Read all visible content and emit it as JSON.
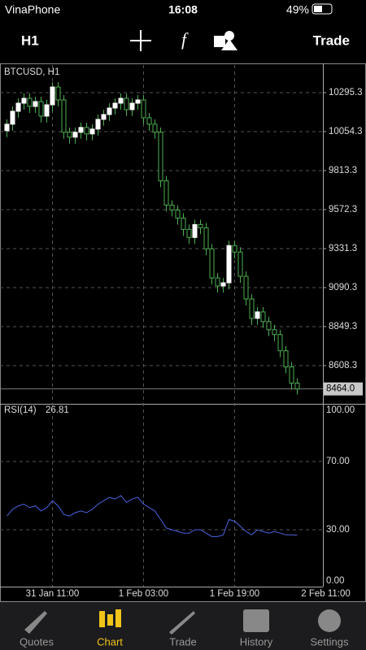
{
  "status_bar": {
    "carrier": "VinaPhone",
    "time": "16:08",
    "battery": "49%"
  },
  "toolbar": {
    "timeframe": "H1",
    "action": "Trade"
  },
  "chart_data": {
    "type": "candlestick",
    "title": "BTCUSD, H1",
    "categories": [
      null,
      null,
      null,
      null,
      null,
      null,
      null,
      null,
      "31 Jan 11:00",
      null,
      null,
      null,
      null,
      null,
      null,
      null,
      null,
      null,
      null,
      null,
      null,
      null,
      null,
      null,
      "1 Feb 03:00",
      null,
      null,
      null,
      null,
      null,
      null,
      null,
      null,
      null,
      null,
      null,
      null,
      null,
      null,
      null,
      "1 Feb 19:00",
      null,
      null,
      null,
      null,
      null,
      null,
      null,
      null,
      null,
      null,
      null,
      null,
      null,
      null,
      null,
      "2 Feb 11:00"
    ],
    "open": [
      10060,
      10100,
      10180,
      10230,
      10260,
      10210,
      10240,
      10150,
      10220,
      10330,
      10250,
      10050,
      10020,
      10050,
      10080,
      10040,
      10070,
      10130,
      10160,
      10200,
      10230,
      10260,
      10190,
      10230,
      10250,
      10140,
      10100,
      10050,
      9750,
      9600,
      9570,
      9520,
      9450,
      9400,
      9480,
      9460,
      9330,
      9150,
      9100,
      9120,
      9350,
      9310,
      9160,
      9020,
      8900,
      8940,
      8880,
      8830,
      8800,
      8700,
      8600,
      8500,
      null,
      null,
      null,
      null,
      null
    ],
    "high": [
      10130,
      10210,
      10260,
      10290,
      10290,
      10270,
      10270,
      10250,
      10360,
      10360,
      10280,
      10080,
      10080,
      10110,
      10110,
      10100,
      10160,
      10190,
      10230,
      10260,
      10290,
      10290,
      10260,
      10280,
      10280,
      10170,
      10130,
      10080,
      9780,
      9630,
      9600,
      9550,
      9480,
      9510,
      9510,
      9490,
      9360,
      9180,
      9150,
      9380,
      9380,
      9340,
      9190,
      9050,
      8970,
      8970,
      8910,
      8860,
      8830,
      8730,
      8630,
      8530,
      null,
      null,
      null,
      null,
      null
    ],
    "low": [
      10020,
      10060,
      10140,
      10190,
      10170,
      10170,
      10110,
      10110,
      10180,
      10210,
      10010,
      9980,
      9980,
      10010,
      10000,
      10000,
      10030,
      10090,
      10120,
      10160,
      10190,
      10150,
      10150,
      10190,
      10100,
      10060,
      10010,
      9710,
      9560,
      9530,
      9480,
      9410,
      9360,
      9360,
      9420,
      9290,
      9110,
      9060,
      9060,
      9080,
      9270,
      9120,
      8980,
      8860,
      8860,
      8840,
      8790,
      8760,
      8660,
      8560,
      8460,
      8430,
      null,
      null,
      null,
      null,
      null
    ],
    "close": [
      10100,
      10180,
      10230,
      10260,
      10210,
      10240,
      10150,
      10220,
      10330,
      10250,
      10050,
      10020,
      10050,
      10080,
      10040,
      10070,
      10130,
      10160,
      10200,
      10230,
      10260,
      10190,
      10230,
      10250,
      10140,
      10100,
      10050,
      9750,
      9600,
      9570,
      9520,
      9450,
      9400,
      9480,
      9460,
      9330,
      9150,
      9100,
      9120,
      9350,
      9310,
      9160,
      9020,
      8900,
      8940,
      8880,
      8830,
      8800,
      8700,
      8600,
      8500,
      8464,
      null,
      null,
      null,
      null,
      null
    ],
    "up_color": "#ffffff",
    "down_color": "#000000",
    "wick_color": "#4caf50",
    "ylim": [
      8372,
      10466
    ],
    "yticks": [
      10295.3,
      10054.3,
      9813.3,
      9572.3,
      9331.3,
      9090.3,
      8849.3,
      8608.3
    ],
    "current_price": {
      "value": 8464,
      "label": "8464.0"
    },
    "grid": true,
    "indicator": {
      "name": "RSI(14)",
      "last": 26.81,
      "color": "#4a63e0",
      "values": [
        38,
        42,
        44,
        45,
        43,
        44,
        41,
        43,
        47,
        44,
        39,
        38,
        40,
        41,
        40,
        42,
        45,
        47,
        49,
        48,
        50,
        46,
        48,
        49,
        45,
        43,
        41,
        36,
        31,
        30,
        29,
        28,
        28,
        30,
        30,
        28,
        26,
        26,
        27,
        36,
        35,
        32,
        29,
        27,
        30,
        29,
        28,
        29,
        28,
        27,
        27,
        26.81,
        null,
        null,
        null,
        null,
        null
      ],
      "ylim": [
        0,
        100
      ],
      "yticks": [
        {
          "value": 100,
          "label": "100.00"
        },
        {
          "value": 70,
          "label": "70.00"
        },
        {
          "value": 30,
          "label": "30.00"
        },
        {
          "value": 0,
          "label": "0.00"
        }
      ]
    }
  },
  "tabs": [
    {
      "label": "Quotes"
    },
    {
      "label": "Chart"
    },
    {
      "label": "Trade"
    },
    {
      "label": "History"
    },
    {
      "label": "Settings"
    }
  ]
}
